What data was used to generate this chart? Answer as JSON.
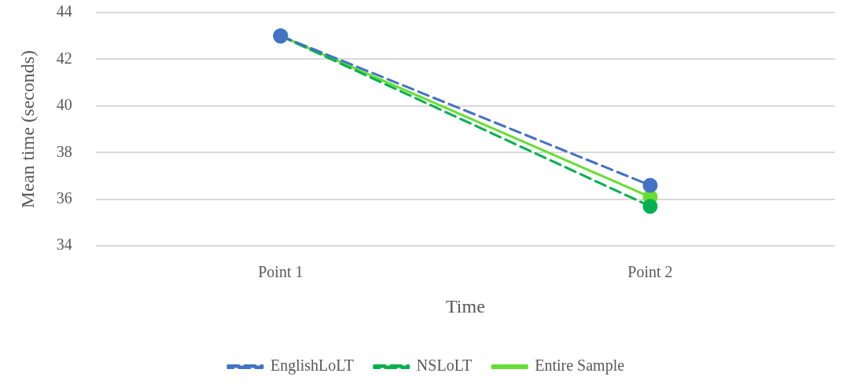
{
  "chart_data": {
    "type": "line",
    "xlabel": "Time",
    "ylabel": "Mean time (seconds)",
    "categories": [
      "Point 1",
      "Point 2"
    ],
    "series": [
      {
        "name": "EnglishLoLT",
        "color": "#4472c4",
        "values": [
          43.0,
          36.6
        ],
        "line_style": "dashed"
      },
      {
        "name": "NSLoLT",
        "color": "#00b050",
        "values": [
          43.0,
          35.7
        ],
        "line_style": "dashed"
      },
      {
        "name": "Entire Sample",
        "color": "#66dd33",
        "values": [
          43.0,
          36.1
        ],
        "line_style": "solid"
      }
    ],
    "ylim": [
      34,
      44
    ],
    "yticks": [
      34,
      36,
      38,
      40,
      42,
      44
    ],
    "grid": "y",
    "legend": "bottom",
    "marker": "circle"
  }
}
